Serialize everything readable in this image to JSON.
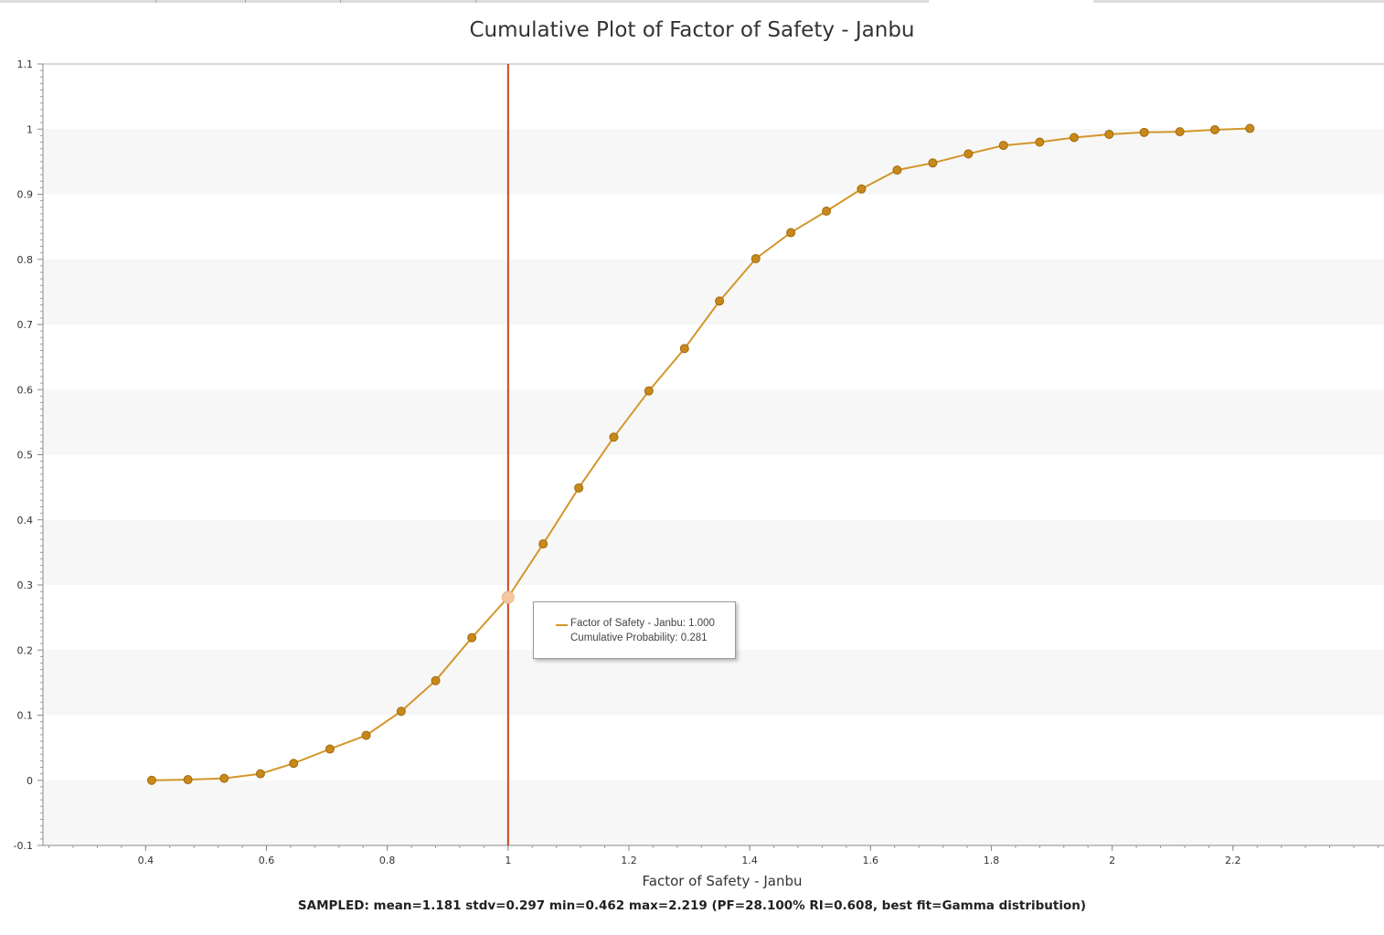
{
  "chart_data": {
    "type": "line",
    "title": "Cumulative Plot of Factor of Safety - Janbu",
    "xlabel": "Factor of Safety - Janbu",
    "ylabel": "",
    "xlim": [
      0.23,
      2.45
    ],
    "ylim": [
      -0.1,
      1.1
    ],
    "x_ticks": [
      0.4,
      0.6,
      0.8,
      1,
      1.2,
      1.4,
      1.6,
      1.8,
      2,
      2.2
    ],
    "y_ticks": [
      -0.1,
      0,
      0.1,
      0.2,
      0.3,
      0.4,
      0.5,
      0.6,
      0.7,
      0.8,
      0.9,
      1,
      1.1
    ],
    "grid": "alternating horizontal bands",
    "legend": "none",
    "series": [
      {
        "name": "Factor of Safety - Janbu",
        "color": "#d4962a",
        "marker_color": "#c8891a",
        "x": [
          0.41,
          0.47,
          0.53,
          0.59,
          0.645,
          0.705,
          0.765,
          0.823,
          0.88,
          0.94,
          1.0,
          1.058,
          1.117,
          1.175,
          1.233,
          1.292,
          1.35,
          1.41,
          1.468,
          1.527,
          1.585,
          1.644,
          1.703,
          1.762,
          1.82,
          1.88,
          1.937,
          1.995,
          2.053,
          2.112,
          2.17,
          2.228
        ],
        "y": [
          0.0,
          0.001,
          0.003,
          0.01,
          0.026,
          0.048,
          0.069,
          0.106,
          0.153,
          0.219,
          0.281,
          0.363,
          0.449,
          0.527,
          0.598,
          0.663,
          0.736,
          0.801,
          0.841,
          0.874,
          0.908,
          0.937,
          0.948,
          0.962,
          0.975,
          0.98,
          0.987,
          0.992,
          0.995,
          0.996,
          0.999,
          1.001
        ]
      }
    ],
    "reference_line": {
      "x": 1.0,
      "color": "#c8461a"
    },
    "highlight_point": {
      "x": 1.0,
      "y": 0.281
    },
    "tooltip": {
      "line1": "Factor of Safety - Janbu: 1.000",
      "line2": "Cumulative Probability: 0.281"
    },
    "summary": "SAMPLED: mean=1.181 stdv=0.297 min=0.462 max=2.219  (PF=28.100% RI=0.608, best fit=Gamma distribution)"
  }
}
